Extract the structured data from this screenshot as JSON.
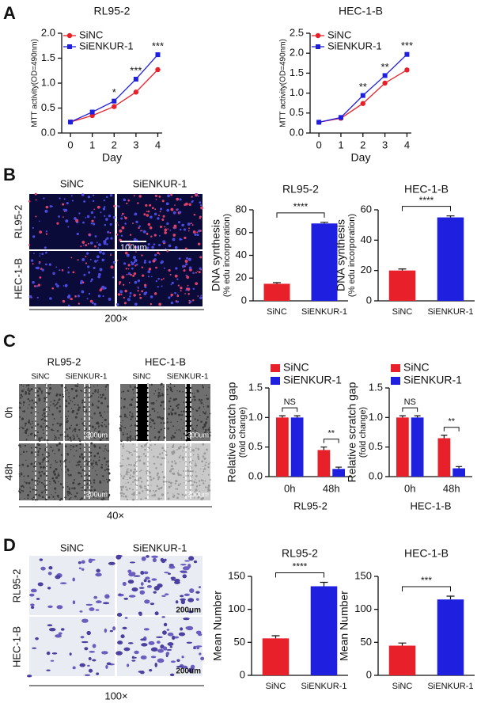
{
  "panel_labels": [
    "A",
    "B",
    "C",
    "D"
  ],
  "images": [
    {
      "columns": [
        "SiNC",
        "SiENKUR-1"
      ],
      "rows": [
        "RL95-2",
        "HEC-1-B"
      ],
      "scale_bar": "100um",
      "magnification": "200×"
    },
    {
      "groups": [
        "RL95-2",
        "HEC-1-B"
      ],
      "columns": [
        "SiNC",
        "SiENKUR-1"
      ],
      "rows": [
        "0h",
        "48h"
      ],
      "scale_bar": "300um",
      "magnification": "40×"
    },
    {
      "columns": [
        "SiNC",
        "SiENKUR-1"
      ],
      "rows": [
        "RL95-2",
        "HEC-1-B"
      ],
      "scale_bar": "200um",
      "magnification": "100×"
    }
  ],
  "chart_data": [
    {
      "type": "line",
      "title": "RL95-2",
      "xlabel": "Day",
      "ylabel": "MTT activity(OD=490nm)",
      "x": [
        0,
        1,
        2,
        3,
        4
      ],
      "xlim": [
        -0.4,
        4.2
      ],
      "xticks": [
        0,
        1,
        2,
        3,
        4
      ],
      "ylim": [
        0,
        2.0
      ],
      "yticks": [
        {
          "value": 0,
          "label": "0.0"
        },
        {
          "value": 0.5,
          "label": "0.5"
        },
        {
          "value": 1,
          "label": "1.0"
        },
        {
          "value": 1.5,
          "label": "1.5"
        },
        {
          "value": 2,
          "label": "2.0"
        }
      ],
      "series": [
        {
          "name": "SiNC",
          "color": "#e8202a",
          "marker": "circle",
          "values": [
            0.22,
            0.35,
            0.53,
            0.82,
            1.27
          ]
        },
        {
          "name": "SiENKUR-1",
          "color": "#1f1fe0",
          "marker": "square",
          "values": [
            0.22,
            0.42,
            0.64,
            1.08,
            1.57
          ]
        }
      ],
      "annotations": [
        {
          "x": 2,
          "text": "*"
        },
        {
          "x": 3,
          "text": "***"
        },
        {
          "x": 4,
          "text": "***"
        }
      ]
    },
    {
      "type": "line",
      "title": "HEC-1-B",
      "xlabel": "Day",
      "ylabel": "MTT activity(OD=490nm)",
      "x": [
        0,
        1,
        2,
        3,
        4
      ],
      "xlim": [
        -0.4,
        4.2
      ],
      "xticks": [
        0,
        1,
        2,
        3,
        4
      ],
      "ylim": [
        0,
        2.5
      ],
      "yticks": [
        {
          "value": 0,
          "label": "0.0"
        },
        {
          "value": 0.5,
          "label": "0.5"
        },
        {
          "value": 1,
          "label": "1.0"
        },
        {
          "value": 1.5,
          "label": "1.5"
        },
        {
          "value": 2,
          "label": "2.0"
        },
        {
          "value": 2.5,
          "label": "2.5"
        }
      ],
      "series": [
        {
          "name": "SiNC",
          "color": "#e8202a",
          "marker": "circle",
          "values": [
            0.27,
            0.37,
            0.74,
            1.25,
            1.58
          ]
        },
        {
          "name": "SiENKUR-1",
          "color": "#1f1fe0",
          "marker": "square",
          "values": [
            0.27,
            0.39,
            0.94,
            1.44,
            1.97
          ]
        }
      ],
      "annotations": [
        {
          "x": 2,
          "text": "**"
        },
        {
          "x": 3,
          "text": "**"
        },
        {
          "x": 4,
          "text": "***"
        }
      ]
    },
    {
      "type": "bar",
      "title": "RL95-2",
      "ylabel": "DNA synthesis",
      "ylabel_sub": "(% edu incorporation)",
      "categories": [
        "SiNC",
        "SiENKUR-1"
      ],
      "values": [
        15,
        68
      ],
      "errors": [
        1,
        1
      ],
      "colors": [
        "#e8202a",
        "#1f1fe0"
      ],
      "ylim": [
        0,
        80
      ],
      "yticks": [
        0,
        20,
        40,
        60,
        80
      ],
      "bracket_label": "****"
    },
    {
      "type": "bar",
      "title": "HEC-1-B",
      "ylabel": "DNA synthesis",
      "ylabel_sub": "(% edu incorporation)",
      "categories": [
        "SiNC",
        "SiENKUR-1"
      ],
      "values": [
        20,
        55
      ],
      "errors": [
        1,
        1
      ],
      "colors": [
        "#e8202a",
        "#1f1fe0"
      ],
      "ylim": [
        0,
        60
      ],
      "yticks": [
        0,
        20,
        40,
        60
      ],
      "bracket_label": "****"
    },
    {
      "type": "grouped_bar",
      "xlabel": "RL95-2",
      "ylabel": "Relative scratch gap",
      "ylabel_sub": "(fold change)",
      "categories": [
        "0h",
        "48h"
      ],
      "series": [
        {
          "name": "SiNC",
          "color": "#e8202a",
          "values": [
            1.0,
            0.45
          ],
          "errors": [
            0.03,
            0.05
          ]
        },
        {
          "name": "SiENKUR-1",
          "color": "#1f1fe0",
          "values": [
            1.0,
            0.13
          ],
          "errors": [
            0.03,
            0.03
          ]
        }
      ],
      "ylim": [
        0,
        1.5
      ],
      "yticks": [
        {
          "value": 0,
          "label": "0.0"
        },
        {
          "value": 0.5,
          "label": "0.5"
        },
        {
          "value": 1,
          "label": "1.0"
        },
        {
          "value": 1.5,
          "label": "1.5"
        }
      ],
      "annotations": [
        "NS",
        "**"
      ]
    },
    {
      "type": "grouped_bar",
      "xlabel": "HEC-1-B",
      "ylabel": "Relative scratch gap",
      "ylabel_sub": "(fold change)",
      "categories": [
        "0h",
        "48h"
      ],
      "series": [
        {
          "name": "SiNC",
          "color": "#e8202a",
          "values": [
            1.0,
            0.65
          ],
          "errors": [
            0.03,
            0.05
          ]
        },
        {
          "name": "SiENKUR-1",
          "color": "#1f1fe0",
          "values": [
            1.0,
            0.14
          ],
          "errors": [
            0.03,
            0.03
          ]
        }
      ],
      "ylim": [
        0,
        1.5
      ],
      "yticks": [
        {
          "value": 0,
          "label": "0.0"
        },
        {
          "value": 0.5,
          "label": "0.5"
        },
        {
          "value": 1,
          "label": "1.0"
        },
        {
          "value": 1.5,
          "label": "1.5"
        }
      ],
      "annotations": [
        "NS",
        "**"
      ]
    },
    {
      "type": "bar",
      "title": "RL95-2",
      "ylabel": "Mean Number",
      "categories": [
        "SiNC",
        "SiENKUR-1"
      ],
      "values": [
        56,
        135
      ],
      "errors": [
        4,
        6
      ],
      "colors": [
        "#e8202a",
        "#1f1fe0"
      ],
      "ylim": [
        0,
        150
      ],
      "yticks": [
        0,
        50,
        100,
        150
      ],
      "bracket_label": "****"
    },
    {
      "type": "bar",
      "title": "HEC-1-B",
      "ylabel": "Mean Number",
      "categories": [
        "SiNC",
        "SiENKUR-1"
      ],
      "values": [
        45,
        115
      ],
      "errors": [
        4,
        5
      ],
      "colors": [
        "#e8202a",
        "#1f1fe0"
      ],
      "ylim": [
        0,
        150
      ],
      "yticks": [
        0,
        50,
        100,
        150
      ],
      "bracket_label": "***"
    }
  ]
}
